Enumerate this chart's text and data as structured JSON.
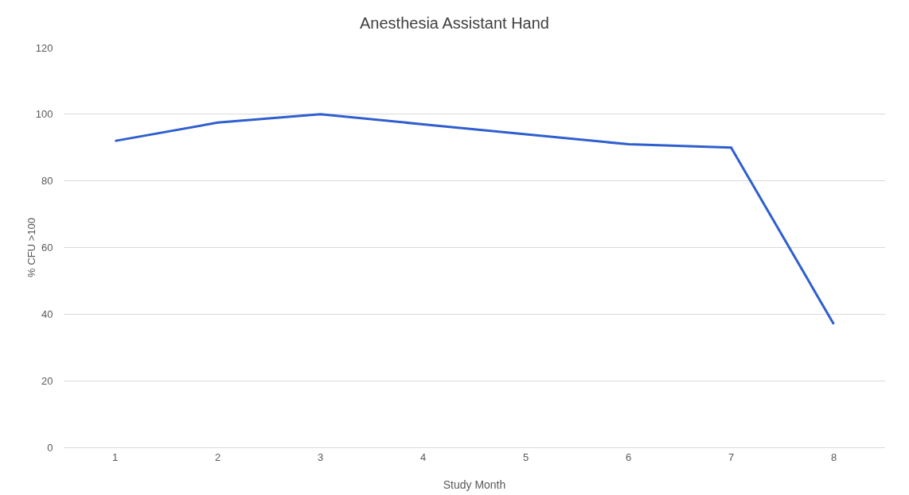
{
  "chart_data": {
    "type": "line",
    "title": "Anesthesia Assistant Hand",
    "xlabel": "Study Month",
    "ylabel": "% CFU >100",
    "categories": [
      "1",
      "2",
      "3",
      "4",
      "5",
      "6",
      "7",
      "8"
    ],
    "series": [
      {
        "color": "#2f5fce",
        "values": [
          92,
          97.5,
          100,
          97,
          94,
          91,
          90,
          37
        ]
      }
    ],
    "ylim": [
      0,
      120
    ],
    "yticks": [
      0,
      20,
      40,
      60,
      80,
      100,
      120
    ],
    "grid": "y",
    "marker": "none",
    "line_style": "solid"
  }
}
